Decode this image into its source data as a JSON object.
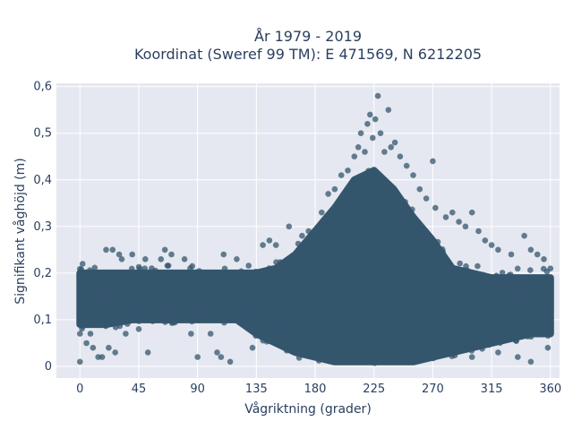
{
  "chart_data": {
    "type": "scatter",
    "title_line1": "År 1979 - 2019",
    "title_line2": "Koordinat (Sweref 99 TM): E 471569, N 6212205",
    "xlabel": "Vågriktning (grader)",
    "ylabel": "Signifikant våghöjd (m)",
    "xlim": [
      -18,
      367
    ],
    "ylim": [
      -0.025,
      0.607
    ],
    "x_ticks": [
      {
        "value": 0,
        "label": "0"
      },
      {
        "value": 45,
        "label": "45"
      },
      {
        "value": 90,
        "label": "90"
      },
      {
        "value": 135,
        "label": "135"
      },
      {
        "value": 180,
        "label": "180"
      },
      {
        "value": 225,
        "label": "225"
      },
      {
        "value": 270,
        "label": "270"
      },
      {
        "value": 315,
        "label": "315"
      },
      {
        "value": 360,
        "label": "360"
      }
    ],
    "y_ticks": [
      {
        "value": 0,
        "label": "0"
      },
      {
        "value": 0.1,
        "label": "0,1"
      },
      {
        "value": 0.2,
        "label": "0,2"
      },
      {
        "value": 0.3,
        "label": "0,3"
      },
      {
        "value": 0.4,
        "label": "0,4"
      },
      {
        "value": 0.5,
        "label": "0,5"
      },
      {
        "value": 0.6,
        "label": "0,6"
      }
    ],
    "grid": true,
    "marker_color": "#34566d",
    "plot_background": "#e5e8f0",
    "density_band": {
      "x": [
        0,
        10,
        20,
        40,
        60,
        90,
        120,
        135,
        150,
        165,
        180,
        195,
        210,
        225,
        240,
        255,
        270,
        285,
        300,
        315,
        330,
        345,
        360
      ],
      "y_low": [
        0.09,
        0.09,
        0.09,
        0.1,
        0.1,
        0.1,
        0.1,
        0.07,
        0.05,
        0.03,
        0.02,
        0.01,
        0.01,
        0.01,
        0.01,
        0.01,
        0.02,
        0.03,
        0.04,
        0.05,
        0.06,
        0.07,
        0.07
      ],
      "y_high": [
        0.2,
        0.2,
        0.2,
        0.2,
        0.2,
        0.2,
        0.2,
        0.2,
        0.21,
        0.24,
        0.29,
        0.34,
        0.4,
        0.42,
        0.38,
        0.32,
        0.27,
        0.21,
        0.2,
        0.19,
        0.19,
        0.19,
        0.19
      ]
    },
    "outlier_points": [
      {
        "x": 0,
        "y": 0.01
      },
      {
        "x": 0,
        "y": 0.07
      },
      {
        "x": 2,
        "y": 0.22
      },
      {
        "x": 5,
        "y": 0.05
      },
      {
        "x": 8,
        "y": 0.07
      },
      {
        "x": 10,
        "y": 0.04
      },
      {
        "x": 14,
        "y": 0.02
      },
      {
        "x": 17,
        "y": 0.02
      },
      {
        "x": 20,
        "y": 0.25
      },
      {
        "x": 22,
        "y": 0.04
      },
      {
        "x": 25,
        "y": 0.25
      },
      {
        "x": 27,
        "y": 0.03
      },
      {
        "x": 30,
        "y": 0.24
      },
      {
        "x": 32,
        "y": 0.23
      },
      {
        "x": 35,
        "y": 0.07
      },
      {
        "x": 40,
        "y": 0.24
      },
      {
        "x": 45,
        "y": 0.08
      },
      {
        "x": 50,
        "y": 0.23
      },
      {
        "x": 52,
        "y": 0.03
      },
      {
        "x": 62,
        "y": 0.23
      },
      {
        "x": 65,
        "y": 0.25
      },
      {
        "x": 70,
        "y": 0.24
      },
      {
        "x": 80,
        "y": 0.23
      },
      {
        "x": 85,
        "y": 0.07
      },
      {
        "x": 90,
        "y": 0.02
      },
      {
        "x": 100,
        "y": 0.07
      },
      {
        "x": 105,
        "y": 0.03
      },
      {
        "x": 108,
        "y": 0.02
      },
      {
        "x": 110,
        "y": 0.24
      },
      {
        "x": 115,
        "y": 0.01
      },
      {
        "x": 120,
        "y": 0.23
      },
      {
        "x": 132,
        "y": 0.04
      },
      {
        "x": 140,
        "y": 0.26
      },
      {
        "x": 145,
        "y": 0.27
      },
      {
        "x": 150,
        "y": 0.26
      },
      {
        "x": 160,
        "y": 0.3
      },
      {
        "x": 170,
        "y": 0.28
      },
      {
        "x": 175,
        "y": 0.29
      },
      {
        "x": 185,
        "y": 0.33
      },
      {
        "x": 190,
        "y": 0.37
      },
      {
        "x": 195,
        "y": 0.38
      },
      {
        "x": 200,
        "y": 0.41
      },
      {
        "x": 205,
        "y": 0.42
      },
      {
        "x": 210,
        "y": 0.45
      },
      {
        "x": 213,
        "y": 0.47
      },
      {
        "x": 215,
        "y": 0.5
      },
      {
        "x": 218,
        "y": 0.46
      },
      {
        "x": 220,
        "y": 0.52
      },
      {
        "x": 222,
        "y": 0.54
      },
      {
        "x": 224,
        "y": 0.49
      },
      {
        "x": 226,
        "y": 0.53
      },
      {
        "x": 228,
        "y": 0.58
      },
      {
        "x": 230,
        "y": 0.5
      },
      {
        "x": 233,
        "y": 0.46
      },
      {
        "x": 236,
        "y": 0.55
      },
      {
        "x": 238,
        "y": 0.47
      },
      {
        "x": 241,
        "y": 0.48
      },
      {
        "x": 245,
        "y": 0.45
      },
      {
        "x": 250,
        "y": 0.43
      },
      {
        "x": 255,
        "y": 0.41
      },
      {
        "x": 260,
        "y": 0.38
      },
      {
        "x": 265,
        "y": 0.36
      },
      {
        "x": 270,
        "y": 0.44
      },
      {
        "x": 272,
        "y": 0.34
      },
      {
        "x": 280,
        "y": 0.32
      },
      {
        "x": 285,
        "y": 0.33
      },
      {
        "x": 290,
        "y": 0.31
      },
      {
        "x": 295,
        "y": 0.3
      },
      {
        "x": 300,
        "y": 0.33
      },
      {
        "x": 305,
        "y": 0.29
      },
      {
        "x": 310,
        "y": 0.27
      },
      {
        "x": 315,
        "y": 0.26
      },
      {
        "x": 320,
        "y": 0.25
      },
      {
        "x": 330,
        "y": 0.24
      },
      {
        "x": 340,
        "y": 0.28
      },
      {
        "x": 345,
        "y": 0.25
      },
      {
        "x": 350,
        "y": 0.24
      },
      {
        "x": 355,
        "y": 0.23
      },
      {
        "x": 360,
        "y": 0.21
      },
      {
        "x": 358,
        "y": 0.04
      },
      {
        "x": 345,
        "y": 0.01
      },
      {
        "x": 335,
        "y": 0.02
      },
      {
        "x": 320,
        "y": 0.03
      },
      {
        "x": 300,
        "y": 0.02
      }
    ]
  }
}
